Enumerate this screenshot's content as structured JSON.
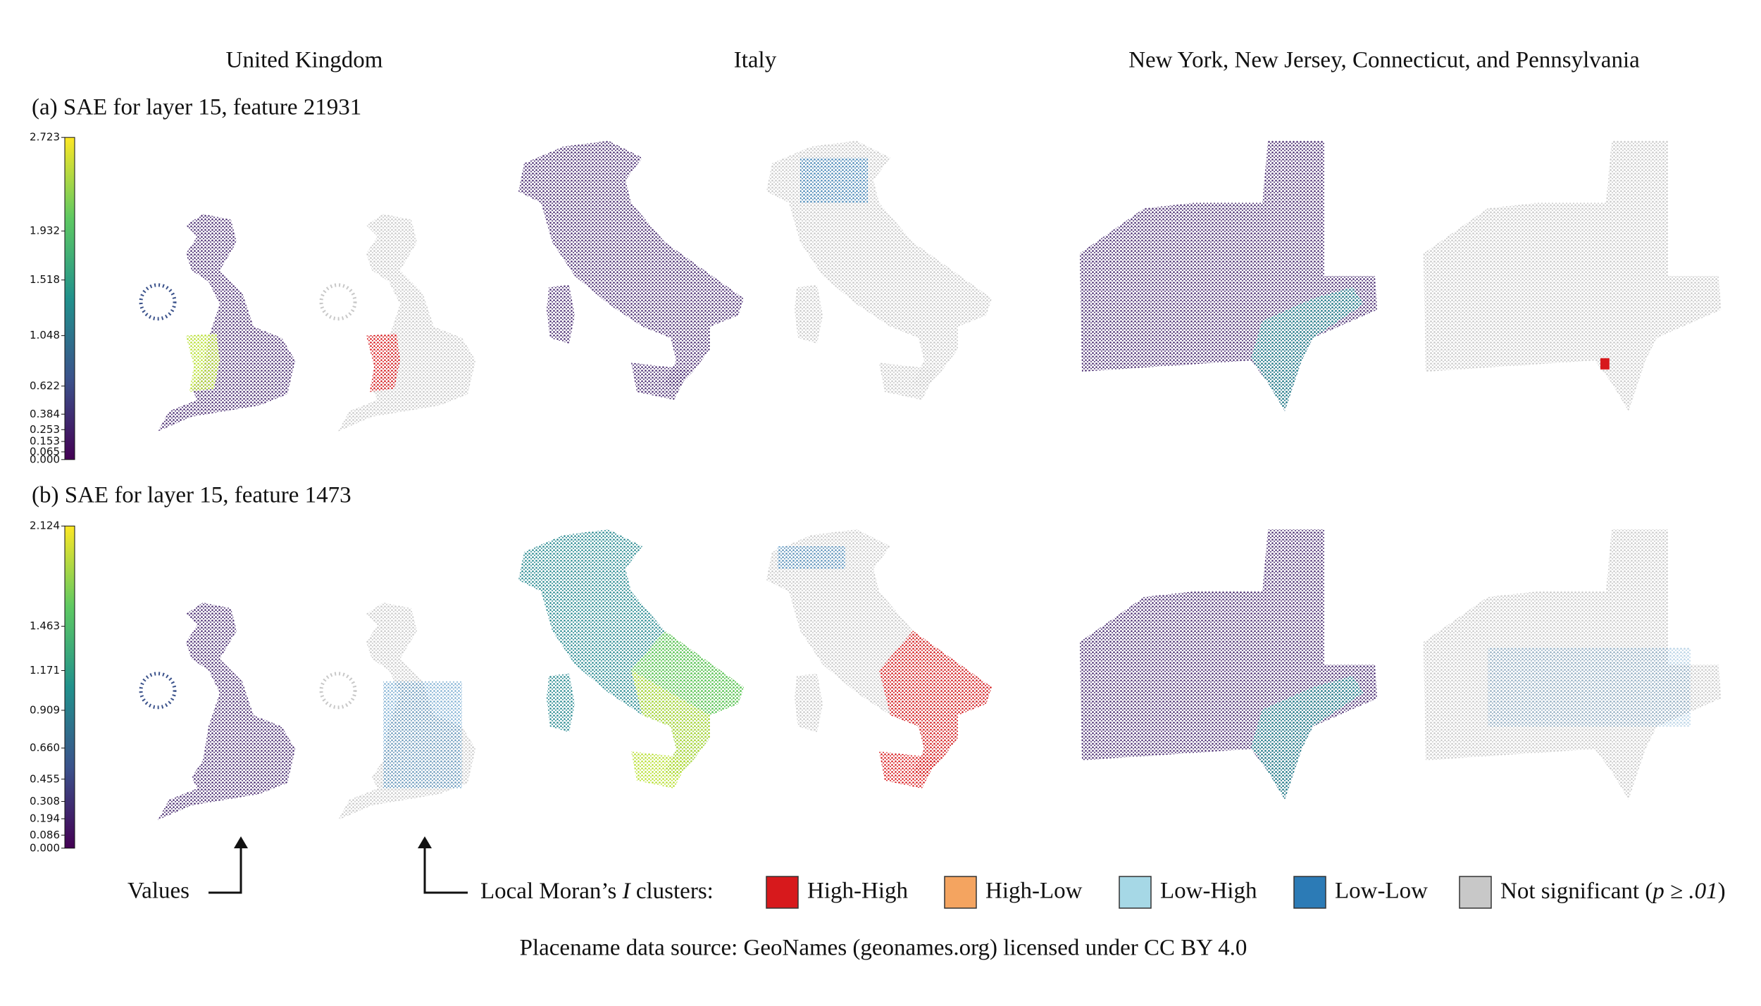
{
  "column_titles": [
    "United Kingdom",
    "Italy",
    "New York, New Jersey, Connecticut, and Pennsylvania"
  ],
  "rows": [
    {
      "title": "(a) SAE for layer 15, feature 21931",
      "colorbar": {
        "lim": [
          0,
          2.723
        ],
        "colors": [
          "#440154",
          "#3b528b",
          "#21918c",
          "#5ec962",
          "#fde725"
        ],
        "ticks": [
          {
            "value": 0,
            "label": "0.000"
          },
          0.065,
          0.153,
          0.253,
          0.384,
          0.622,
          1.048,
          1.518,
          1.932,
          2.723
        ]
      }
    },
    {
      "title": "(b) SAE for layer 15, feature 1473",
      "colorbar": {
        "lim": [
          0,
          2.124
        ],
        "colors": [
          "#440154",
          "#3b528b",
          "#21918c",
          "#5ec962",
          "#fde725"
        ],
        "ticks": [
          {
            "value": 0,
            "label": "0.000"
          },
          0.086,
          0.194,
          0.308,
          0.455,
          {
            "value": 0.66,
            "label": "0.660"
          },
          0.909,
          1.171,
          1.463,
          2.124
        ]
      }
    }
  ],
  "annotation": "Values",
  "legend": {
    "title": [
      "Local Moran’s ",
      "I",
      " clusters:"
    ],
    "items": [
      {
        "label": "High-High",
        "color": "#d7191c"
      },
      {
        "label": "High-Low",
        "color": "#f4a460"
      },
      {
        "label": "Low-High",
        "color": "#a6d8e6"
      },
      {
        "label": "Low-Low",
        "color": "#2c7bb6"
      },
      {
        "label": [
          "Not significant (",
          "p ≥ .01",
          ")"
        ],
        "color": "#c8c8c8"
      }
    ]
  },
  "source": "Placename data source: GeoNames (geonames.org) licensed under CC BY 4.0"
}
